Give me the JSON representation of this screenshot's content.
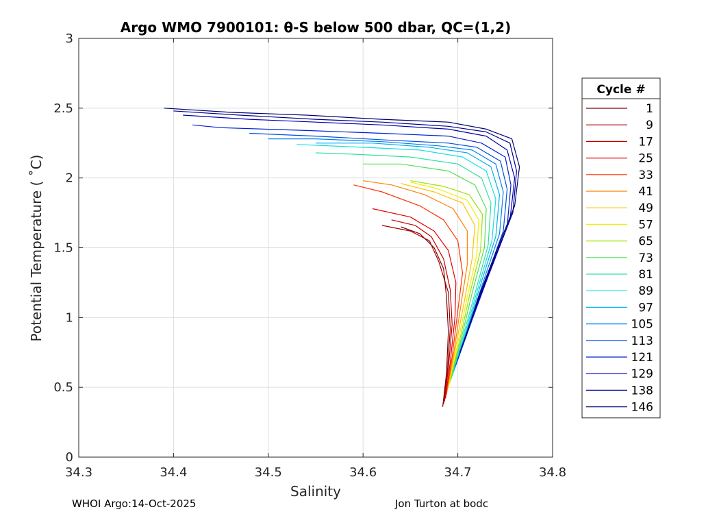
{
  "chart_data": {
    "type": "line",
    "title": "Argo WMO 7900101: θ-S below 500 dbar,  QC=(1,2)",
    "xlabel": "Salinity",
    "ylabel": "Potential Temperature ( ˚C)",
    "xlim": [
      34.3,
      34.8
    ],
    "ylim": [
      0,
      3
    ],
    "xticks": [
      "34.3",
      "34.4",
      "34.5",
      "34.6",
      "34.7",
      "34.8"
    ],
    "yticks": [
      "0",
      "0.5",
      "1",
      "1.5",
      "2",
      "2.5",
      "3"
    ],
    "grid": true,
    "legend_title": "Cycle #",
    "legend_position": "outside-right",
    "series": [
      {
        "name": "1",
        "color": "#800000",
        "points": [
          [
            34.684,
            0.36
          ],
          [
            34.688,
            0.6
          ],
          [
            34.69,
            0.9
          ],
          [
            34.688,
            1.15
          ],
          [
            34.685,
            1.35
          ],
          [
            34.675,
            1.5
          ],
          [
            34.66,
            1.6
          ],
          [
            34.64,
            1.65
          ]
        ]
      },
      {
        "name": "9",
        "color": "#a00000",
        "points": [
          [
            34.685,
            0.38
          ],
          [
            34.689,
            0.62
          ],
          [
            34.692,
            0.92
          ],
          [
            34.69,
            1.18
          ],
          [
            34.68,
            1.4
          ],
          [
            34.67,
            1.55
          ],
          [
            34.65,
            1.62
          ],
          [
            34.62,
            1.66
          ]
        ]
      },
      {
        "name": "17",
        "color": "#c00000",
        "points": [
          [
            34.686,
            0.4
          ],
          [
            34.69,
            0.64
          ],
          [
            34.694,
            0.95
          ],
          [
            34.692,
            1.2
          ],
          [
            34.685,
            1.42
          ],
          [
            34.672,
            1.58
          ],
          [
            34.655,
            1.66
          ],
          [
            34.63,
            1.7
          ]
        ]
      },
      {
        "name": "25",
        "color": "#e00000",
        "points": [
          [
            34.687,
            0.42
          ],
          [
            34.692,
            0.68
          ],
          [
            34.697,
            1.0
          ],
          [
            34.698,
            1.25
          ],
          [
            34.69,
            1.48
          ],
          [
            34.675,
            1.62
          ],
          [
            34.65,
            1.72
          ],
          [
            34.61,
            1.78
          ]
        ]
      },
      {
        "name": "33",
        "color": "#ff3000",
        "points": [
          [
            34.688,
            0.45
          ],
          [
            34.694,
            0.72
          ],
          [
            34.7,
            1.05
          ],
          [
            34.705,
            1.32
          ],
          [
            34.7,
            1.55
          ],
          [
            34.685,
            1.7
          ],
          [
            34.66,
            1.8
          ],
          [
            34.62,
            1.9
          ],
          [
            34.59,
            1.95
          ]
        ]
      },
      {
        "name": "41",
        "color": "#ff8000",
        "points": [
          [
            34.689,
            0.48
          ],
          [
            34.696,
            0.76
          ],
          [
            34.703,
            1.08
          ],
          [
            34.71,
            1.38
          ],
          [
            34.71,
            1.62
          ],
          [
            34.695,
            1.78
          ],
          [
            34.665,
            1.88
          ],
          [
            34.63,
            1.95
          ],
          [
            34.6,
            1.98
          ]
        ]
      },
      {
        "name": "49",
        "color": "#ffc000",
        "points": [
          [
            34.69,
            0.5
          ],
          [
            34.698,
            0.8
          ],
          [
            34.707,
            1.12
          ],
          [
            34.715,
            1.42
          ],
          [
            34.718,
            1.66
          ],
          [
            34.705,
            1.82
          ],
          [
            34.675,
            1.9
          ],
          [
            34.64,
            1.96
          ]
        ]
      },
      {
        "name": "57",
        "color": "#f0f000",
        "points": [
          [
            34.691,
            0.52
          ],
          [
            34.7,
            0.82
          ],
          [
            34.71,
            1.15
          ],
          [
            34.72,
            1.45
          ],
          [
            34.722,
            1.7
          ],
          [
            34.71,
            1.84
          ],
          [
            34.68,
            1.92
          ],
          [
            34.65,
            1.97
          ]
        ]
      },
      {
        "name": "65",
        "color": "#a0e000",
        "points": [
          [
            34.692,
            0.54
          ],
          [
            34.702,
            0.84
          ],
          [
            34.713,
            1.18
          ],
          [
            34.724,
            1.48
          ],
          [
            34.726,
            1.74
          ],
          [
            34.712,
            1.88
          ],
          [
            34.685,
            1.94
          ],
          [
            34.65,
            1.98
          ]
        ]
      },
      {
        "name": "73",
        "color": "#50e050",
        "points": [
          [
            34.693,
            0.56
          ],
          [
            34.704,
            0.86
          ],
          [
            34.716,
            1.2
          ],
          [
            34.728,
            1.5
          ],
          [
            34.73,
            1.78
          ],
          [
            34.718,
            1.95
          ],
          [
            34.69,
            2.05
          ],
          [
            34.64,
            2.1
          ],
          [
            34.6,
            2.1
          ]
        ]
      },
      {
        "name": "81",
        "color": "#30e0a0",
        "points": [
          [
            34.694,
            0.58
          ],
          [
            34.706,
            0.88
          ],
          [
            34.72,
            1.22
          ],
          [
            34.732,
            1.52
          ],
          [
            34.735,
            1.82
          ],
          [
            34.725,
            2.0
          ],
          [
            34.7,
            2.1
          ],
          [
            34.65,
            2.15
          ],
          [
            34.59,
            2.17
          ],
          [
            34.55,
            2.18
          ]
        ]
      },
      {
        "name": "89",
        "color": "#10e0e0",
        "points": [
          [
            34.695,
            0.6
          ],
          [
            34.708,
            0.9
          ],
          [
            34.723,
            1.25
          ],
          [
            34.736,
            1.55
          ],
          [
            34.74,
            1.85
          ],
          [
            34.73,
            2.05
          ],
          [
            34.705,
            2.15
          ],
          [
            34.66,
            2.2
          ],
          [
            34.6,
            2.22
          ],
          [
            34.53,
            2.24
          ]
        ]
      },
      {
        "name": "97",
        "color": "#00b0f0",
        "points": [
          [
            34.696,
            0.62
          ],
          [
            34.71,
            0.92
          ],
          [
            34.726,
            1.28
          ],
          [
            34.74,
            1.58
          ],
          [
            34.744,
            1.88
          ],
          [
            34.735,
            2.08
          ],
          [
            34.71,
            2.18
          ],
          [
            34.67,
            2.22
          ],
          [
            34.61,
            2.25
          ],
          [
            34.55,
            2.25
          ]
        ]
      },
      {
        "name": "105",
        "color": "#0080f0",
        "points": [
          [
            34.697,
            0.64
          ],
          [
            34.712,
            0.95
          ],
          [
            34.729,
            1.3
          ],
          [
            34.744,
            1.6
          ],
          [
            34.748,
            1.9
          ],
          [
            34.74,
            2.1
          ],
          [
            34.715,
            2.2
          ],
          [
            34.68,
            2.23
          ],
          [
            34.62,
            2.26
          ],
          [
            34.55,
            2.28
          ],
          [
            34.5,
            2.28
          ]
        ]
      },
      {
        "name": "113",
        "color": "#0050e0",
        "points": [
          [
            34.698,
            0.66
          ],
          [
            34.714,
            0.97
          ],
          [
            34.732,
            1.32
          ],
          [
            34.748,
            1.62
          ],
          [
            34.752,
            1.92
          ],
          [
            34.745,
            2.12
          ],
          [
            34.72,
            2.22
          ],
          [
            34.69,
            2.25
          ],
          [
            34.63,
            2.27
          ],
          [
            34.55,
            2.3
          ],
          [
            34.48,
            2.32
          ]
        ]
      },
      {
        "name": "121",
        "color": "#0020d0",
        "points": [
          [
            34.7,
            0.7
          ],
          [
            34.716,
            1.0
          ],
          [
            34.735,
            1.35
          ],
          [
            34.752,
            1.65
          ],
          [
            34.756,
            1.95
          ],
          [
            34.75,
            2.15
          ],
          [
            34.725,
            2.25
          ],
          [
            34.69,
            2.3
          ],
          [
            34.62,
            2.32
          ],
          [
            34.54,
            2.34
          ],
          [
            34.45,
            2.36
          ],
          [
            34.42,
            2.38
          ]
        ]
      },
      {
        "name": "129",
        "color": "#0000b0",
        "points": [
          [
            34.702,
            0.75
          ],
          [
            34.718,
            1.05
          ],
          [
            34.738,
            1.4
          ],
          [
            34.755,
            1.7
          ],
          [
            34.76,
            2.0
          ],
          [
            34.752,
            2.2
          ],
          [
            34.73,
            2.3
          ],
          [
            34.69,
            2.35
          ],
          [
            34.62,
            2.38
          ],
          [
            34.55,
            2.4
          ],
          [
            34.48,
            2.42
          ],
          [
            34.41,
            2.45
          ]
        ]
      },
      {
        "name": "138",
        "color": "#000090",
        "points": [
          [
            34.705,
            0.8
          ],
          [
            34.72,
            1.1
          ],
          [
            34.74,
            1.45
          ],
          [
            34.758,
            1.75
          ],
          [
            34.762,
            2.05
          ],
          [
            34.755,
            2.25
          ],
          [
            34.73,
            2.33
          ],
          [
            34.69,
            2.37
          ],
          [
            34.62,
            2.4
          ],
          [
            34.55,
            2.42
          ],
          [
            34.47,
            2.45
          ],
          [
            34.4,
            2.48
          ]
        ]
      },
      {
        "name": "146",
        "color": "#000070",
        "points": [
          [
            34.708,
            0.85
          ],
          [
            34.722,
            1.15
          ],
          [
            34.742,
            1.5
          ],
          [
            34.76,
            1.8
          ],
          [
            34.765,
            2.08
          ],
          [
            34.757,
            2.28
          ],
          [
            34.73,
            2.35
          ],
          [
            34.69,
            2.4
          ],
          [
            34.62,
            2.42
          ],
          [
            34.54,
            2.45
          ],
          [
            34.46,
            2.47
          ],
          [
            34.39,
            2.5
          ]
        ]
      }
    ]
  },
  "footer": {
    "left": "WHOI Argo:14-Oct-2025",
    "right": "Jon Turton at bodc"
  }
}
